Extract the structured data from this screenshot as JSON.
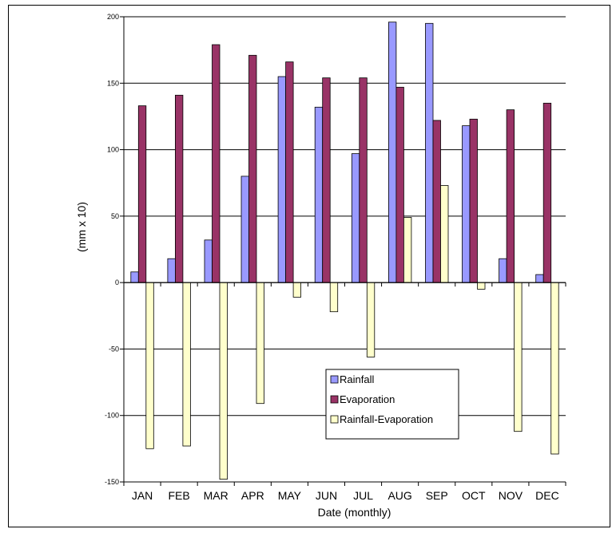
{
  "chart_data": {
    "type": "bar",
    "categories": [
      "JAN",
      "FEB",
      "MAR",
      "APR",
      "MAY",
      "JUN",
      "JUL",
      "AUG",
      "SEP",
      "OCT",
      "NOV",
      "DEC"
    ],
    "series": [
      {
        "name": "Rainfall",
        "color": "#9999ff",
        "values": [
          8,
          18,
          32,
          80,
          155,
          132,
          97,
          196,
          195,
          118,
          18,
          6
        ]
      },
      {
        "name": "Evaporation",
        "color": "#993366",
        "values": [
          133,
          141,
          179,
          171,
          166,
          154,
          154,
          147,
          122,
          123,
          130,
          135
        ]
      },
      {
        "name": "Rainfall-Evaporation",
        "color": "#ffffcc",
        "values": [
          -125,
          -123,
          -148,
          -91,
          -11,
          -22,
          -56,
          49,
          73,
          -5,
          -112,
          -129
        ]
      }
    ],
    "ylim": [
      -150,
      200
    ],
    "yticks": [
      "200",
      "150",
      "100",
      "50",
      "0",
      "-50",
      "-100",
      "-150"
    ],
    "xlabel": "Date (monthly)",
    "ylabel": "(mm x 10)",
    "grid": true,
    "legend_position": "lower-right-inside"
  }
}
